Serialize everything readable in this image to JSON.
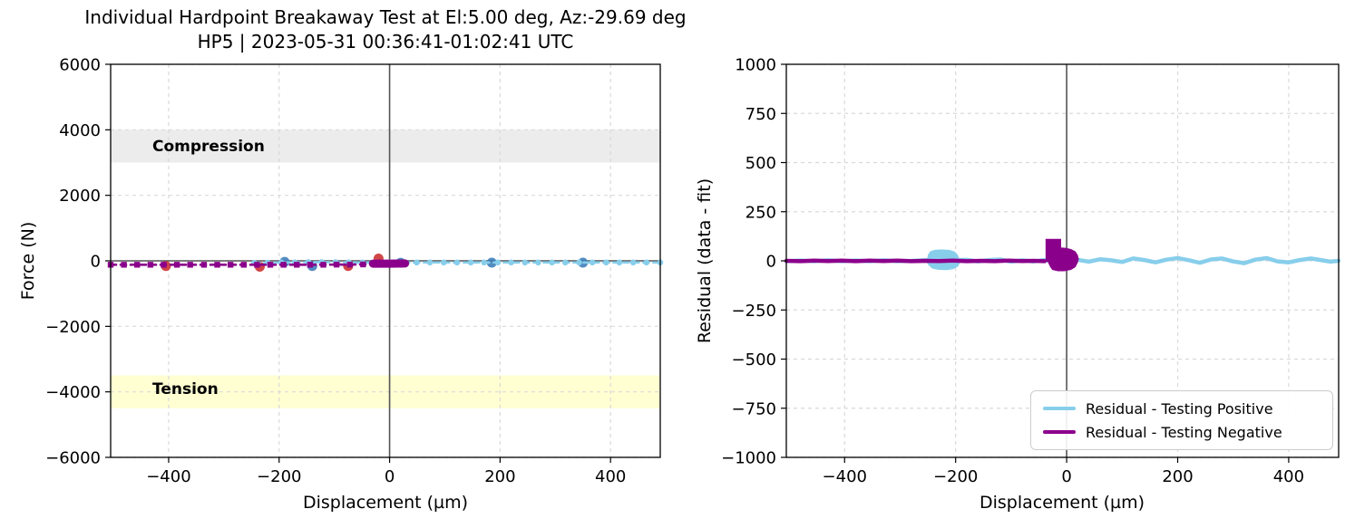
{
  "figure": {
    "title_line1": "Individual Hardpoint Breakaway Test at El:5.00 deg, Az:-29.69 deg",
    "title_line2": "HP5 | 2023-05-31 00:36:41-01:02:41 UTC"
  },
  "left_plot": {
    "xlabel": "Displacement (µm)",
    "ylabel": "Force (N)",
    "compression_label": "Compression",
    "tension_label": "Tension"
  },
  "right_plot": {
    "xlabel": "Displacement (µm)",
    "ylabel": "Residual (data - fit)"
  },
  "legend": {
    "items": [
      {
        "label": "Residual - Testing Positive",
        "color": "#87CEEB"
      },
      {
        "label": "Residual - Testing Negative",
        "color": "#8B008B"
      }
    ]
  },
  "colors": {
    "testing_positive": "#87CEEB",
    "testing_negative": "#8B008B",
    "outlier_blue": "#3b7cb8",
    "outlier_red": "#cc3333",
    "compression_band": "#ececec",
    "tension_band": "#ffffd2",
    "grid": "#d9d9d9",
    "zero_lines": "#555555"
  },
  "chart_data": [
    {
      "type": "line",
      "title": "Individual Hardpoint Breakaway Test at El:5.00 deg, Az:-29.69 deg | HP5 | 2023-05-31 00:36:41-01:02:41 UTC",
      "xlabel": "Displacement (µm)",
      "ylabel": "Force (N)",
      "xlim": [
        -505,
        490
      ],
      "ylim": [
        -6000,
        6000
      ],
      "xticks": [
        -400,
        -200,
        0,
        200,
        400
      ],
      "yticks": [
        -6000,
        -4000,
        -2000,
        0,
        2000,
        4000,
        6000
      ],
      "grid": true,
      "axhline": 0,
      "axvline": 0,
      "bands": [
        {
          "label": "Compression",
          "y0": 3000,
          "y1": 4000,
          "color": "#ececec"
        },
        {
          "label": "Tension",
          "y0": -4500,
          "y1": -3500,
          "color": "#ffffd2"
        }
      ],
      "series": [
        {
          "name": "outliers-red",
          "type": "scatter",
          "color": "#cc3333",
          "r": 5.5,
          "opacity": 0.9,
          "points": [
            [
              -405,
              -160
            ],
            [
              -235,
              -180
            ],
            [
              -75,
              -160
            ],
            [
              -20,
              70
            ]
          ]
        },
        {
          "name": "outliers-steelblue",
          "type": "scatter",
          "color": "#3b7cb8",
          "r": 5.5,
          "opacity": 0.88,
          "points": [
            [
              -190,
              -30
            ],
            [
              -140,
              -160
            ],
            [
              20,
              -60
            ],
            [
              185,
              -55
            ],
            [
              350,
              -55
            ]
          ]
        },
        {
          "name": "force-testing-positive",
          "type": "line",
          "color": "#87CEEB",
          "lw": 2.6,
          "dash": "6 5",
          "marker": "circle",
          "points": [
            [
              -245,
              -60
            ],
            [
              -221,
              -55
            ],
            [
              -196,
              -50
            ],
            [
              -172,
              -45
            ],
            [
              -147,
              -40
            ],
            [
              -123,
              -40
            ],
            [
              -98,
              -40
            ],
            [
              -74,
              -45
            ],
            [
              -49,
              -50
            ],
            [
              -25,
              -50
            ],
            [
              0,
              -50
            ],
            [
              24,
              -50
            ],
            [
              49,
              -50
            ],
            [
              73,
              -50
            ],
            [
              98,
              -50
            ],
            [
              122,
              -50
            ],
            [
              147,
              -50
            ],
            [
              171,
              -50
            ],
            [
              196,
              -50
            ],
            [
              220,
              -50
            ],
            [
              245,
              -50
            ],
            [
              269,
              -50
            ],
            [
              294,
              -50
            ],
            [
              318,
              -50
            ],
            [
              343,
              -50
            ],
            [
              367,
              -50
            ],
            [
              392,
              -50
            ],
            [
              416,
              -50
            ],
            [
              441,
              -50
            ],
            [
              465,
              -50
            ],
            [
              490,
              -50
            ]
          ]
        },
        {
          "name": "force-testing-negative",
          "type": "line",
          "color": "#8B008B",
          "lw": 2.6,
          "dash": "6 5",
          "marker": "square",
          "points": [
            [
              -505,
              -120
            ],
            [
              -481,
              -120
            ],
            [
              -457,
              -120
            ],
            [
              -433,
              -120
            ],
            [
              -409,
              -120
            ],
            [
              -385,
              -120
            ],
            [
              -361,
              -120
            ],
            [
              -336,
              -120
            ],
            [
              -312,
              -120
            ],
            [
              -288,
              -120
            ],
            [
              -264,
              -120
            ],
            [
              -240,
              -120
            ],
            [
              -216,
              -120
            ],
            [
              -192,
              -120
            ],
            [
              -168,
              -120
            ],
            [
              -144,
              -120
            ],
            [
              -120,
              -120
            ],
            [
              -96,
              -115
            ],
            [
              -72,
              -115
            ],
            [
              -48,
              -110
            ],
            [
              -24,
              -100
            ],
            [
              -12,
              -95
            ],
            [
              0,
              -90
            ],
            [
              10,
              -90
            ],
            [
              18,
              -88
            ],
            [
              25,
              -88
            ]
          ]
        },
        {
          "name": "force-negative-cluster",
          "type": "line",
          "color": "#8B008B",
          "lw": 9,
          "points": [
            [
              -30,
              -85
            ],
            [
              0,
              -85
            ],
            [
              28,
              -80
            ]
          ]
        }
      ]
    },
    {
      "type": "line",
      "xlabel": "Displacement (µm)",
      "ylabel": "Residual (data - fit)",
      "xlim": [
        -505,
        490
      ],
      "ylim": [
        -1000,
        1000
      ],
      "xticks": [
        -400,
        -200,
        0,
        200,
        400
      ],
      "yticks": [
        -1000,
        -750,
        -500,
        -250,
        0,
        250,
        500,
        750,
        1000
      ],
      "grid": true,
      "axvline": 0,
      "legend": [
        "Residual - Testing Positive",
        "Residual - Testing Negative"
      ],
      "legend_pos": "lower right",
      "series": [
        {
          "name": "residual-testing-positive",
          "type": "line",
          "color": "#87CEEB",
          "lw": 4.5,
          "points": [
            [
              -505,
              -2
            ],
            [
              -480,
              2
            ],
            [
              -455,
              -2
            ],
            [
              -430,
              3
            ],
            [
              -405,
              -2
            ],
            [
              -380,
              2
            ],
            [
              -355,
              -2
            ],
            [
              -330,
              3
            ],
            [
              -305,
              -2
            ],
            [
              -280,
              0
            ],
            [
              -260,
              3
            ],
            [
              -240,
              4
            ],
            [
              -220,
              3
            ],
            [
              -200,
              4
            ],
            [
              -180,
              5
            ],
            [
              -160,
              -3
            ],
            [
              -140,
              4
            ],
            [
              -120,
              7
            ],
            [
              -100,
              -4
            ],
            [
              -80,
              3
            ],
            [
              -60,
              -3
            ],
            [
              -40,
              4
            ],
            [
              -20,
              -3
            ],
            [
              0,
              0
            ],
            [
              20,
              5
            ],
            [
              40,
              -4
            ],
            [
              60,
              8
            ],
            [
              80,
              3
            ],
            [
              100,
              -6
            ],
            [
              120,
              12
            ],
            [
              140,
              4
            ],
            [
              160,
              -8
            ],
            [
              180,
              6
            ],
            [
              200,
              14
            ],
            [
              220,
              3
            ],
            [
              240,
              -10
            ],
            [
              260,
              7
            ],
            [
              280,
              12
            ],
            [
              300,
              -3
            ],
            [
              320,
              -12
            ],
            [
              340,
              6
            ],
            [
              360,
              14
            ],
            [
              380,
              -3
            ],
            [
              400,
              -8
            ],
            [
              420,
              4
            ],
            [
              440,
              12
            ],
            [
              460,
              3
            ],
            [
              475,
              -4
            ],
            [
              490,
              0
            ]
          ]
        },
        {
          "name": "residual-positive-blob",
          "type": "polygon",
          "color": "#87CEEB",
          "points": [
            [
              -252,
              2
            ],
            [
              -250,
              30
            ],
            [
              -246,
              48
            ],
            [
              -238,
              56
            ],
            [
              -226,
              58
            ],
            [
              -212,
              56
            ],
            [
              -202,
              48
            ],
            [
              -196,
              30
            ],
            [
              -193,
              8
            ],
            [
              -192,
              -10
            ],
            [
              -196,
              -30
            ],
            [
              -204,
              -42
            ],
            [
              -216,
              -47
            ],
            [
              -230,
              -46
            ],
            [
              -242,
              -40
            ],
            [
              -248,
              -25
            ],
            [
              -252,
              -8
            ]
          ]
        },
        {
          "name": "residual-testing-negative",
          "type": "line",
          "color": "#8B008B",
          "lw": 4.5,
          "points": [
            [
              -505,
              0
            ],
            [
              -480,
              -2
            ],
            [
              -455,
              1
            ],
            [
              -430,
              -1
            ],
            [
              -405,
              1
            ],
            [
              -380,
              -2
            ],
            [
              -355,
              1
            ],
            [
              -330,
              -1
            ],
            [
              -305,
              1
            ],
            [
              -280,
              -2
            ],
            [
              -255,
              0
            ],
            [
              -230,
              -1
            ],
            [
              -205,
              1
            ],
            [
              -180,
              -2
            ],
            [
              -155,
              0
            ],
            [
              -130,
              -2
            ],
            [
              -105,
              1
            ],
            [
              -80,
              -1
            ],
            [
              -60,
              0
            ],
            [
              -40,
              -2
            ]
          ]
        },
        {
          "name": "residual-negative-blob",
          "type": "polygon",
          "color": "#8B008B",
          "points": [
            [
              -38,
              -6
            ],
            [
              -38,
              112
            ],
            [
              -10,
              112
            ],
            [
              -10,
              68
            ],
            [
              -2,
              66
            ],
            [
              8,
              60
            ],
            [
              16,
              48
            ],
            [
              20,
              30
            ],
            [
              22,
              10
            ],
            [
              20,
              -10
            ],
            [
              16,
              -32
            ],
            [
              8,
              -46
            ],
            [
              -4,
              -53
            ],
            [
              -16,
              -53
            ],
            [
              -26,
              -46
            ],
            [
              -30,
              -30
            ],
            [
              -33,
              -12
            ],
            [
              -34,
              -6
            ]
          ]
        }
      ]
    }
  ]
}
